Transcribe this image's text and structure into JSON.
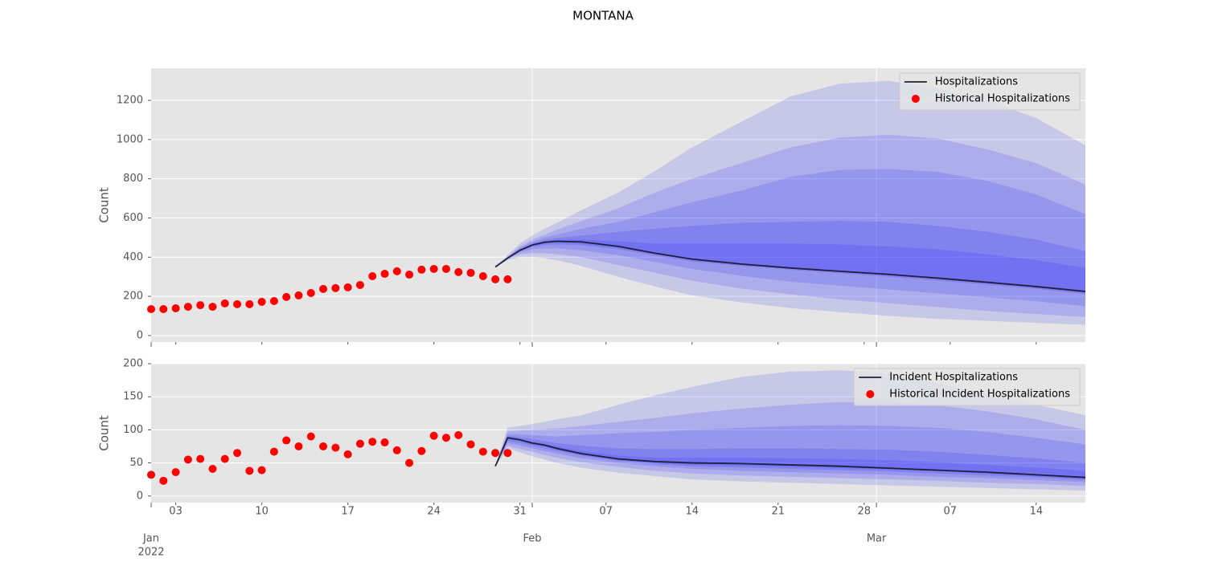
{
  "chart_data": [
    {
      "type": "line",
      "title": "MONTANA",
      "ylabel": "Count",
      "xlim": [
        "2022-01-01",
        "2022-03-18"
      ],
      "ylim": [
        -33,
        1364
      ],
      "yticks": [
        0,
        200,
        400,
        600,
        800,
        1000,
        1200
      ],
      "grid": true,
      "legend": "upper right",
      "series": [
        {
          "name": "Hospitalizations",
          "color": "#1f1f3a",
          "kind": "line",
          "x": [
            "2022-01-29",
            "2022-01-30",
            "2022-01-31",
            "2022-02-01",
            "2022-02-02",
            "2022-02-03",
            "2022-02-05",
            "2022-02-08",
            "2022-02-11",
            "2022-02-14",
            "2022-02-18",
            "2022-02-22",
            "2022-02-26",
            "2022-03-02",
            "2022-03-06",
            "2022-03-10",
            "2022-03-14",
            "2022-03-18"
          ],
          "values": [
            350,
            395,
            435,
            462,
            476,
            481,
            478,
            455,
            420,
            390,
            365,
            345,
            328,
            312,
            293,
            272,
            250,
            225
          ]
        },
        {
          "name": "Historical Hospitalizations",
          "color": "#ff0000",
          "kind": "scatter",
          "x": [
            "2022-01-01",
            "2022-01-02",
            "2022-01-03",
            "2022-01-04",
            "2022-01-05",
            "2022-01-06",
            "2022-01-07",
            "2022-01-08",
            "2022-01-09",
            "2022-01-10",
            "2022-01-11",
            "2022-01-12",
            "2022-01-13",
            "2022-01-14",
            "2022-01-15",
            "2022-01-16",
            "2022-01-17",
            "2022-01-18",
            "2022-01-19",
            "2022-01-20",
            "2022-01-21",
            "2022-01-22",
            "2022-01-23",
            "2022-01-24",
            "2022-01-25",
            "2022-01-26",
            "2022-01-27",
            "2022-01-28",
            "2022-01-29",
            "2022-01-30"
          ],
          "values": [
            135,
            135,
            139,
            147,
            155,
            147,
            164,
            160,
            160,
            172,
            176,
            197,
            205,
            217,
            238,
            242,
            246,
            258,
            303,
            315,
            328,
            311,
            336,
            340,
            340,
            324,
            320,
            303,
            287,
            287
          ]
        }
      ],
      "bands": {
        "color": "#0000ff",
        "opacity": 0.13,
        "x": [
          "2022-01-29",
          "2022-01-30",
          "2022-01-31",
          "2022-02-01",
          "2022-02-02",
          "2022-02-03",
          "2022-02-05",
          "2022-02-08",
          "2022-02-11",
          "2022-02-14",
          "2022-02-18",
          "2022-02-22",
          "2022-02-26",
          "2022-03-02",
          "2022-03-06",
          "2022-03-10",
          "2022-03-14",
          "2022-03-18"
        ],
        "levels": [
          {
            "upper": [
              350,
              410,
              470,
              510,
              545,
              575,
              640,
              730,
              840,
              960,
              1090,
              1220,
              1285,
              1300,
              1260,
              1200,
              1110,
              970
            ],
            "lower": [
              350,
              385,
              400,
              400,
              395,
              385,
              355,
              300,
              250,
              205,
              170,
              140,
              120,
              100,
              85,
              75,
              65,
              55
            ]
          },
          {
            "upper": [
              350,
              405,
              455,
              490,
              515,
              540,
              585,
              650,
              730,
              800,
              880,
              960,
              1010,
              1025,
              1005,
              950,
              880,
              770
            ],
            "lower": [
              350,
              390,
              415,
              420,
              420,
              415,
              400,
              360,
              320,
              280,
              240,
              210,
              185,
              165,
              145,
              125,
              110,
              95
            ]
          },
          {
            "upper": [
              350,
              400,
              448,
              478,
              500,
              515,
              545,
              580,
              630,
              680,
              740,
              810,
              845,
              850,
              835,
              790,
              720,
              620
            ],
            "lower": [
              350,
              392,
              425,
              440,
              445,
              445,
              435,
              410,
              375,
              340,
              305,
              275,
              255,
              235,
              215,
              195,
              175,
              150
            ]
          },
          {
            "upper": [
              350,
              398,
              442,
              470,
              488,
              498,
              510,
              530,
              545,
              560,
              575,
              580,
              585,
              580,
              560,
              530,
              490,
              430
            ],
            "lower": [
              350,
              393,
              430,
              452,
              462,
              465,
              460,
              440,
              408,
              378,
              355,
              335,
              318,
              300,
              280,
              260,
              238,
              212
            ]
          },
          {
            "upper": [
              350,
              397,
              438,
              466,
              481,
              488,
              490,
              480,
              470,
              470,
              470,
              470,
              465,
              455,
              440,
              415,
              385,
              345
            ],
            "lower": [
              350,
              394,
              432,
              458,
              470,
              474,
              468,
              448,
              415,
              385,
              360,
              340,
              324,
              307,
              288,
              266,
              244,
              218
            ]
          }
        ]
      }
    },
    {
      "type": "line",
      "ylabel": "Count",
      "xlim": [
        "2022-01-01",
        "2022-03-18"
      ],
      "ylim": [
        -10,
        200
      ],
      "yticks": [
        0,
        50,
        100,
        150,
        200
      ],
      "grid": true,
      "legend": "upper right",
      "xticks": [
        {
          "value": "2022-01-03",
          "label": "03"
        },
        {
          "value": "2022-01-10",
          "label": "10"
        },
        {
          "value": "2022-01-17",
          "label": "17"
        },
        {
          "value": "2022-01-24",
          "label": "24"
        },
        {
          "value": "2022-01-31",
          "label": "31"
        },
        {
          "value": "2022-02-07",
          "label": "07"
        },
        {
          "value": "2022-02-14",
          "label": "14"
        },
        {
          "value": "2022-02-21",
          "label": "21"
        },
        {
          "value": "2022-02-28",
          "label": "28"
        },
        {
          "value": "2022-03-07",
          "label": "07"
        },
        {
          "value": "2022-03-14",
          "label": "14"
        }
      ],
      "x_month_ticks": [
        {
          "value": "2022-01-01",
          "label": "Jan"
        },
        {
          "value": "2022-02-01",
          "label": "Feb"
        },
        {
          "value": "2022-03-01",
          "label": "Mar"
        }
      ],
      "x_year_ticks": [
        {
          "value": "2022-01-01",
          "label": "2022"
        }
      ],
      "series": [
        {
          "name": "Incident Hospitalizations",
          "color": "#1f1f3a",
          "kind": "line",
          "x": [
            "2022-01-29",
            "2022-01-30",
            "2022-01-31",
            "2022-02-01",
            "2022-02-02",
            "2022-02-03",
            "2022-02-05",
            "2022-02-08",
            "2022-02-11",
            "2022-02-14",
            "2022-02-18",
            "2022-02-22",
            "2022-02-26",
            "2022-03-02",
            "2022-03-06",
            "2022-03-10",
            "2022-03-14",
            "2022-03-18"
          ],
          "values": [
            45,
            88,
            85,
            80,
            77,
            72,
            64,
            56,
            52,
            50,
            49,
            47,
            45,
            42,
            39,
            36,
            32,
            28
          ]
        },
        {
          "name": "Historical Incident Hospitalizations",
          "color": "#ff0000",
          "kind": "scatter",
          "x": [
            "2022-01-01",
            "2022-01-02",
            "2022-01-03",
            "2022-01-04",
            "2022-01-05",
            "2022-01-06",
            "2022-01-07",
            "2022-01-08",
            "2022-01-09",
            "2022-01-10",
            "2022-01-11",
            "2022-01-12",
            "2022-01-13",
            "2022-01-14",
            "2022-01-15",
            "2022-01-16",
            "2022-01-17",
            "2022-01-18",
            "2022-01-19",
            "2022-01-20",
            "2022-01-21",
            "2022-01-22",
            "2022-01-23",
            "2022-01-24",
            "2022-01-25",
            "2022-01-26",
            "2022-01-27",
            "2022-01-28",
            "2022-01-29",
            "2022-01-30"
          ],
          "values": [
            32,
            23,
            36,
            55,
            56,
            41,
            56,
            65,
            38,
            39,
            67,
            84,
            75,
            90,
            75,
            73,
            63,
            79,
            82,
            81,
            69,
            50,
            68,
            91,
            88,
            92,
            78,
            67,
            65,
            65
          ]
        }
      ],
      "bands": {
        "color": "#0000ff",
        "opacity": 0.13,
        "x": [
          "2022-01-29",
          "2022-01-30",
          "2022-01-31",
          "2022-02-01",
          "2022-02-02",
          "2022-02-03",
          "2022-02-05",
          "2022-02-08",
          "2022-02-11",
          "2022-02-14",
          "2022-02-18",
          "2022-02-22",
          "2022-02-26",
          "2022-03-02",
          "2022-03-06",
          "2022-03-10",
          "2022-03-14",
          "2022-03-18"
        ],
        "levels": [
          {
            "upper": [
              45,
              103,
              106,
              109,
              112,
              116,
              122,
              138,
              152,
              165,
              180,
              188,
              190,
              185,
              170,
              155,
              138,
              122
            ],
            "lower": [
              45,
              72,
              66,
              60,
              55,
              50,
              43,
              35,
              30,
              25,
              22,
              20,
              18,
              16,
              14,
              12,
              10,
              8
            ]
          },
          {
            "upper": [
              45,
              98,
              99,
              100,
              101,
              102,
              106,
              112,
              118,
              125,
              132,
              138,
              142,
              142,
              137,
              128,
              116,
              100
            ],
            "lower": [
              45,
              76,
              71,
              67,
              62,
              58,
              51,
              44,
              38,
              34,
              31,
              29,
              27,
              25,
              23,
              20,
              18,
              15
            ]
          },
          {
            "upper": [
              45,
              94,
              93,
              92,
              91,
              90,
              92,
              95,
              97,
              100,
              103,
              106,
              107,
              106,
              103,
              97,
              88,
              78
            ],
            "lower": [
              45,
              80,
              76,
              72,
              68,
              64,
              57,
              50,
              45,
              41,
              38,
              36,
              34,
              32,
              29,
              27,
              24,
              21
            ]
          },
          {
            "upper": [
              45,
              91,
              89,
              86,
              83,
              80,
              76,
              72,
              71,
              71,
              72,
              72,
              71,
              70,
              67,
              62,
              57,
              50
            ],
            "lower": [
              45,
              83,
              80,
              76,
              72,
              68,
              61,
              53,
              48,
              45,
              43,
              41,
              39,
              37,
              34,
              31,
              28,
              24
            ]
          },
          {
            "upper": [
              45,
              89,
              86,
              82,
              79,
              75,
              68,
              61,
              58,
              58,
              58,
              57,
              56,
              54,
              51,
              47,
              43,
              38
            ],
            "lower": [
              45,
              86,
              83,
              78,
              75,
              70,
              62,
              54,
              50,
              47,
              46,
              44,
              42,
              40,
              37,
              34,
              30,
              26
            ]
          }
        ]
      }
    }
  ]
}
